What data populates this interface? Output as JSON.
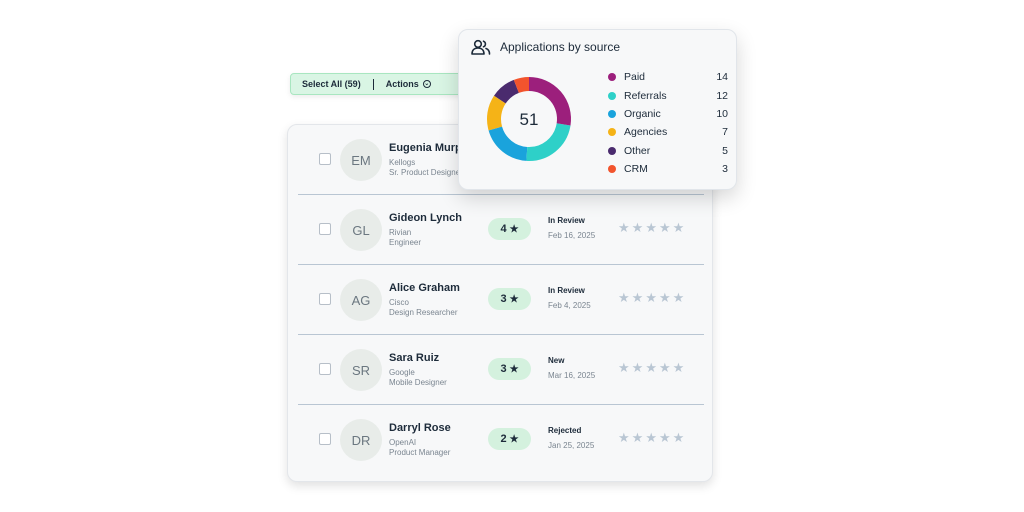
{
  "toolbar": {
    "select_all_label": "Select All (59)",
    "actions_label": "Actions"
  },
  "candidates": [
    {
      "initials": "EM",
      "name": "Eugenia Murph",
      "company": "Kellogs",
      "role": "Sr. Product Designer",
      "rating": "",
      "status": "",
      "date": "",
      "star_rating": 0
    },
    {
      "initials": "GL",
      "name": "Gideon Lynch",
      "company": "Rivian",
      "role": "Engineer",
      "rating": "4",
      "status": "In Review",
      "date": "Feb 16, 2025",
      "star_rating": 0
    },
    {
      "initials": "AG",
      "name": "Alice Graham",
      "company": "Cisco",
      "role": "Design Researcher",
      "rating": "3",
      "status": "In Review",
      "date": "Feb 4, 2025",
      "star_rating": 0
    },
    {
      "initials": "SR",
      "name": "Sara Ruiz",
      "company": "Google",
      "role": "Mobile Designer",
      "rating": "3",
      "status": "New",
      "date": "Mar 16, 2025",
      "star_rating": 0
    },
    {
      "initials": "DR",
      "name": "Darryl Rose",
      "company": "OpenAI",
      "role": "Product Manager",
      "rating": "2",
      "status": "Rejected",
      "date": "Jan 25, 2025",
      "star_rating": 0
    }
  ],
  "icons": {
    "star": "★",
    "people": "people-icon",
    "actions_chevron": "chevron-down-circle-icon"
  },
  "popup": {
    "title": "Applications by source",
    "total": "51"
  },
  "chart_data": {
    "type": "pie",
    "title": "Applications by source",
    "center_label": "51",
    "categories": [
      "Paid",
      "Referrals",
      "Organic",
      "Agencies",
      "Other",
      "CRM"
    ],
    "values": [
      14,
      12,
      10,
      7,
      5,
      3
    ],
    "colors": [
      "#9c1f7c",
      "#2ed0c8",
      "#1aa3dc",
      "#f5b317",
      "#4a2b6e",
      "#f2542d"
    ],
    "donut_order": [
      "CRM",
      "Paid",
      "Referrals",
      "Organic",
      "Agencies",
      "Other"
    ]
  },
  "colors": {
    "accent_green": "#d4f1de",
    "text_dark": "#1d2b3a",
    "muted": "#7a8590",
    "star_empty": "#b9c6d3"
  }
}
